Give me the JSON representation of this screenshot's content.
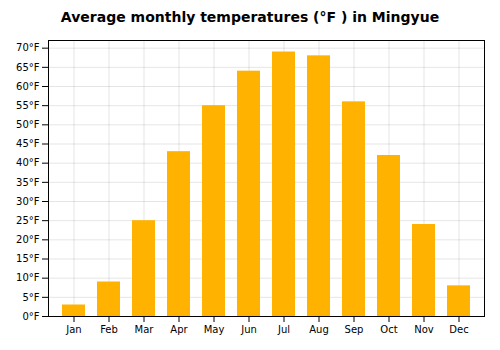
{
  "chart_data": {
    "type": "bar",
    "title": "Average monthly temperatures (°F ) in Mingyue",
    "categories": [
      "Jan",
      "Feb",
      "Mar",
      "Apr",
      "May",
      "Jun",
      "Jul",
      "Aug",
      "Sep",
      "Oct",
      "Nov",
      "Dec"
    ],
    "values": [
      3,
      9,
      25,
      43,
      55,
      64,
      69,
      68,
      56,
      42,
      24,
      8
    ],
    "color": "#FFB300",
    "ylim": [
      0,
      72
    ],
    "yticks": [
      {
        "value": 0,
        "label": "0°F"
      },
      {
        "value": 5,
        "label": "5°F"
      },
      {
        "value": 10,
        "label": "10°F"
      },
      {
        "value": 15,
        "label": "15°F"
      },
      {
        "value": 20,
        "label": "20°F"
      },
      {
        "value": 25,
        "label": "25°F"
      },
      {
        "value": 30,
        "label": "30°F"
      },
      {
        "value": 35,
        "label": "35°F"
      },
      {
        "value": 40,
        "label": "40°F"
      },
      {
        "value": 45,
        "label": "45°F"
      },
      {
        "value": 50,
        "label": "50°F"
      },
      {
        "value": 55,
        "label": "55°F"
      },
      {
        "value": 60,
        "label": "60°F"
      },
      {
        "value": 65,
        "label": "65°F"
      },
      {
        "value": 70,
        "label": "70°F"
      }
    ],
    "grid": true
  }
}
